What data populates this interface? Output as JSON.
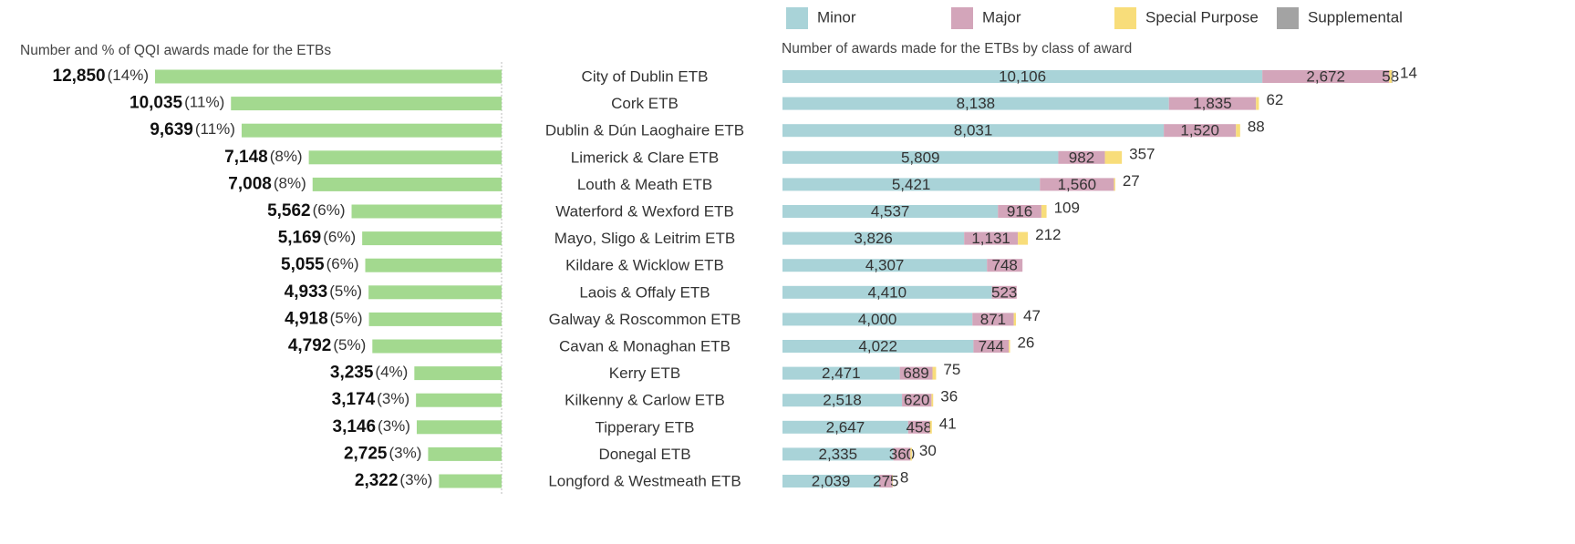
{
  "chart_data": [
    {
      "type": "bar",
      "title": "Number and % of QQI awards made for the ETBs",
      "values": [
        12850,
        10035,
        9639,
        7148,
        7008,
        5562,
        5169,
        5055,
        4933,
        4918,
        4792,
        3235,
        3174,
        3146,
        2725,
        2322
      ],
      "value_labels": [
        "12,850",
        "10,035",
        "9,639",
        "7,148",
        "7,008",
        "5,562",
        "5,169",
        "5,055",
        "4,933",
        "4,918",
        "4,792",
        "3,235",
        "3,174",
        "3,146",
        "2,725",
        "2,322"
      ],
      "percents": [
        14,
        11,
        11,
        8,
        8,
        6,
        6,
        6,
        5,
        5,
        5,
        4,
        3,
        3,
        3,
        3
      ],
      "percent_labels": [
        "(14%)",
        "(11%)",
        "(11%)",
        "(8%)",
        "(8%)",
        "(6%)",
        "(6%)",
        "(6%)",
        "(5%)",
        "(5%)",
        "(5%)",
        "(4%)",
        "(3%)",
        "(3%)",
        "(3%)",
        "(3%)"
      ],
      "color": "#a3d98f"
    },
    {
      "type": "stacked_bar",
      "title": "Number of awards made for the ETBs by class of award",
      "categories": [
        "City of Dublin ETB",
        "Cork ETB",
        "Dublin & Dún Laoghaire ETB",
        "Limerick & Clare ETB",
        "Louth & Meath ETB",
        "Waterford & Wexford ETB",
        "Mayo, Sligo & Leitrim ETB",
        "Kildare & Wicklow ETB",
        "Laois & Offaly ETB",
        "Galway & Roscommon ETB",
        "Cavan & Monaghan ETB",
        "Kerry ETB",
        "Kilkenny & Carlow ETB",
        "Tipperary ETB",
        "Donegal ETB",
        "Longford & Westmeath ETB"
      ],
      "legend": "top",
      "series": [
        {
          "name": "Minor",
          "color": "#a9d3d8",
          "values": [
            10106,
            8138,
            8031,
            5809,
            5421,
            4537,
            3826,
            4307,
            4410,
            4000,
            4022,
            2471,
            2518,
            2647,
            2335,
            2039
          ],
          "value_labels": [
            "10,106",
            "8,138",
            "8,031",
            "5,809",
            "5,421",
            "4,537",
            "3,826",
            "4,307",
            "4,410",
            "4,000",
            "4,022",
            "2,471",
            "2,518",
            "2,647",
            "2,335",
            "2,039"
          ]
        },
        {
          "name": "Major",
          "color": "#d3a5ba",
          "values": [
            2672,
            1835,
            1520,
            982,
            1560,
            916,
            1131,
            748,
            523,
            871,
            744,
            689,
            620,
            458,
            360,
            275
          ],
          "value_labels": [
            "2,672",
            "1,835",
            "1,520",
            "982",
            "1,560",
            "916",
            "1,131",
            "748",
            "523",
            "871",
            "744",
            "689",
            "620",
            "458",
            "360",
            "275"
          ]
        },
        {
          "name": "Special Purpose",
          "color": "#f8dd7a",
          "values": [
            58,
            62,
            88,
            357,
            27,
            109,
            212,
            null,
            null,
            47,
            26,
            75,
            36,
            41,
            30,
            8
          ],
          "value_labels": [
            "58",
            "62",
            "88",
            "357",
            "27",
            "109",
            "212",
            null,
            null,
            "47",
            "26",
            "75",
            "36",
            "41",
            "30",
            "8"
          ]
        },
        {
          "name": "Supplemental",
          "color": "#a3a3a3",
          "values": [
            14,
            null,
            null,
            null,
            null,
            null,
            null,
            null,
            null,
            null,
            null,
            null,
            null,
            null,
            null,
            null
          ],
          "value_labels": [
            "14",
            null,
            null,
            null,
            null,
            null,
            null,
            null,
            null,
            null,
            null,
            null,
            null,
            null,
            null,
            null
          ]
        }
      ]
    }
  ]
}
